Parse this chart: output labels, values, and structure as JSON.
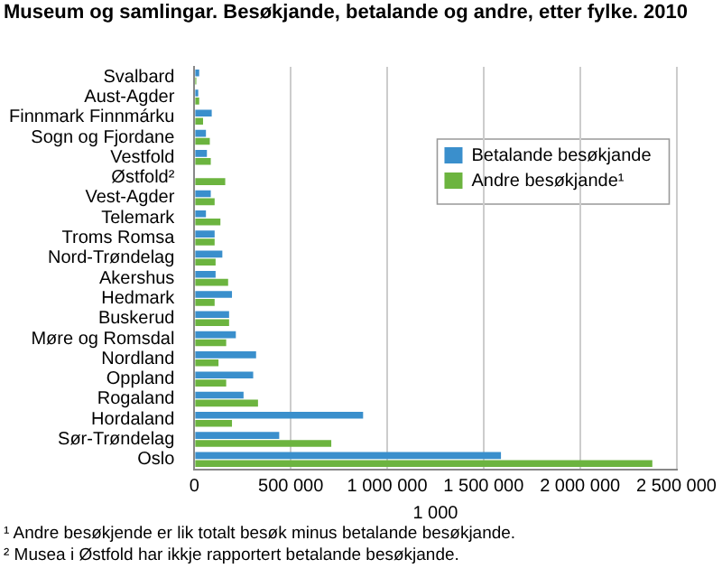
{
  "chart_data": {
    "type": "bar",
    "orientation": "horizontal",
    "title": "Museum og samlingar. Besøkjande, betalande og andre, etter fylke. 2010",
    "categories": [
      "Svalbard",
      "Aust-Agder",
      "Finnmark Finnmárku",
      "Sogn og Fjordane",
      "Vestfold",
      "Østfold²",
      "Vest-Agder",
      "Telemark",
      "Troms Romsa",
      "Nord-Trøndelag",
      "Akershus",
      "Hedmark",
      "Buskerud",
      "Møre og Romsdal",
      "Nordland",
      "Oppland",
      "Rogaland",
      "Hordaland",
      "Sør-Trøndelag",
      "Oslo"
    ],
    "series": [
      {
        "name": "Betalande besøkjande",
        "color": "#3a8fcc",
        "values": [
          25000,
          20000,
          90000,
          60000,
          65000,
          null,
          85000,
          60000,
          105000,
          145000,
          110000,
          195000,
          180000,
          215000,
          320000,
          305000,
          255000,
          875000,
          440000,
          1590000
        ]
      },
      {
        "name": "Andre besøkjande¹",
        "color": "#6cb43f",
        "values": [
          10000,
          25000,
          45000,
          80000,
          85000,
          160000,
          105000,
          135000,
          105000,
          110000,
          175000,
          105000,
          180000,
          165000,
          125000,
          165000,
          330000,
          195000,
          710000,
          2375000
        ]
      }
    ],
    "xlim": [
      0,
      2500000
    ],
    "xticks": [
      {
        "value": 0,
        "label": "0"
      },
      {
        "value": 500000,
        "label": "500 000"
      },
      {
        "value": 1000000,
        "label": "1 000 000"
      },
      {
        "value": 1500000,
        "label": "1 500 000"
      },
      {
        "value": 2000000,
        "label": "2 000 000"
      },
      {
        "value": 2500000,
        "label": "2 500 000"
      }
    ],
    "xlabel": "1 000",
    "grid": "x",
    "legend": "top right",
    "annotations": [
      "¹ Andre besøkjende er lik totalt besøk minus betalande besøkjande.",
      "² Musea i Østfold har ikkje rapportert betalande besøkjande."
    ]
  }
}
